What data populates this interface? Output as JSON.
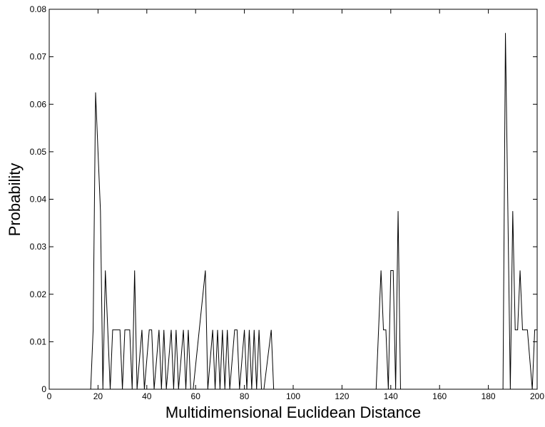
{
  "chart_data": {
    "type": "line",
    "xlabel": "Multidimensional Euclidean Distance",
    "ylabel": "Probability",
    "x": [
      0,
      17,
      18,
      19,
      21,
      22,
      23,
      25,
      26,
      29,
      30,
      31,
      33,
      34,
      35,
      36,
      38,
      39,
      41,
      42,
      43,
      45,
      46,
      47,
      48,
      50,
      51,
      52,
      53,
      55,
      56,
      57,
      58,
      59,
      64,
      65,
      67,
      68,
      69,
      70,
      71,
      72,
      73,
      74,
      76,
      77,
      78,
      80,
      81,
      82,
      83,
      84,
      85,
      86,
      87,
      88,
      91,
      92,
      93,
      134,
      136,
      137,
      138,
      139,
      140,
      141,
      142,
      143,
      144,
      186,
      187,
      189,
      190,
      191,
      192,
      193,
      194,
      196,
      198,
      199,
      200
    ],
    "series": [
      {
        "name": "Probability",
        "color": "#000000",
        "values": [
          0,
          0,
          0.0125,
          0.0625,
          0.0375,
          0,
          0.025,
          0,
          0.0125,
          0.0125,
          0,
          0.0125,
          0.0125,
          0,
          0.025,
          0,
          0.0125,
          0,
          0.0125,
          0.0125,
          0,
          0.0125,
          0,
          0.0125,
          0,
          0.0125,
          0,
          0.0125,
          0,
          0.0125,
          0,
          0.0125,
          0,
          0,
          0.025,
          0,
          0.0125,
          0,
          0.0125,
          0,
          0.0125,
          0,
          0.0125,
          0,
          0.0125,
          0.0125,
          0,
          0.0125,
          0,
          0.0125,
          0,
          0.0125,
          0,
          0.0125,
          0,
          0,
          0.0125,
          0,
          0,
          0,
          0.025,
          0.0125,
          0.0125,
          0,
          0.025,
          0.025,
          0,
          0.0375,
          0,
          0,
          0.075,
          0,
          0.0375,
          0.0125,
          0.0125,
          0.025,
          0.0125,
          0.0125,
          0,
          0.0125,
          0.0125
        ]
      }
    ],
    "xlim": [
      0,
      200
    ],
    "xticks": [
      0,
      20,
      40,
      60,
      80,
      100,
      120,
      140,
      160,
      180,
      200
    ],
    "ylim": [
      0,
      0.08
    ],
    "yticks": [
      0,
      0.01,
      0.02,
      0.03,
      0.04,
      0.05,
      0.06,
      0.07,
      0.08
    ]
  }
}
